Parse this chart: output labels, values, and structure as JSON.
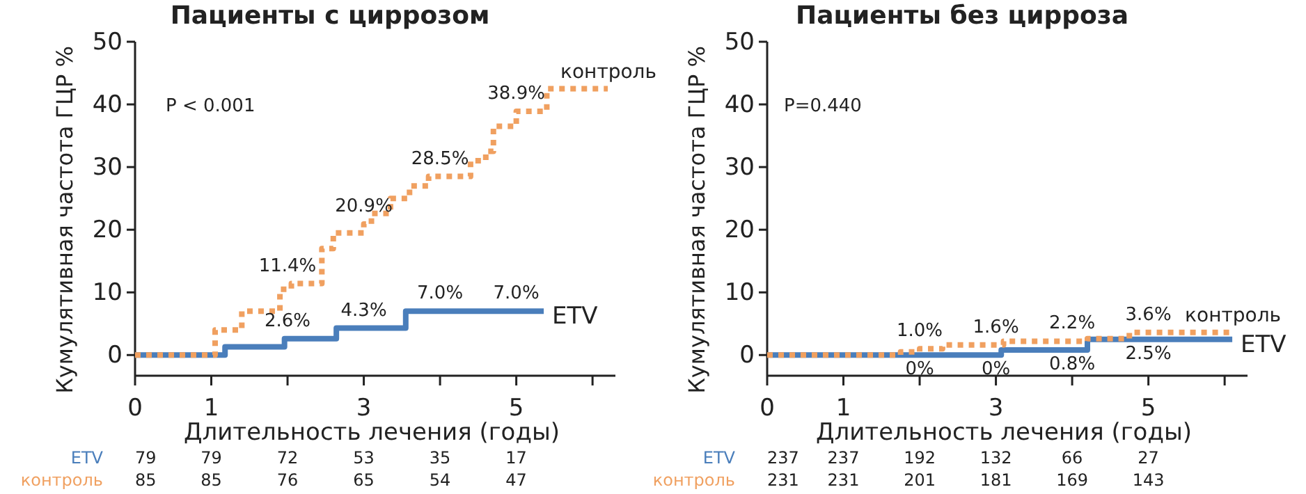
{
  "chart_data": [
    {
      "type": "step",
      "title": "Пациенты с циррозом",
      "xlabel": "Длительность лечения (годы)",
      "ylabel": "Кумулятивная частота ГЦР %",
      "xlim": [
        0,
        6.3
      ],
      "xticks": [
        0,
        1,
        {
          "value": 2,
          "label": null
        },
        3,
        {
          "value": 4,
          "label": null
        },
        5,
        {
          "value": 6,
          "label": null
        }
      ],
      "ylim": [
        -3.3,
        50
      ],
      "yticks": [
        0,
        10,
        20,
        30,
        40,
        50
      ],
      "series": [
        {
          "name": "ETV",
          "color": "#4a7ebb",
          "line_style": "solid",
          "x": [
            0,
            1.18,
            1.96,
            2.64,
            3.55,
            5.36
          ],
          "values": [
            0,
            1.3,
            2.6,
            4.3,
            7.0,
            7.0
          ]
        },
        {
          "name": "контроль",
          "color": "#f0a060",
          "line_style": "dotted",
          "x": [
            0,
            1.05,
            1.4,
            1.9,
            2.05,
            2.45,
            2.6,
            3.0,
            3.1,
            3.35,
            3.6,
            3.85,
            4.4,
            4.6,
            4.7,
            5.0,
            5.4,
            6.2
          ],
          "values": [
            0,
            4.0,
            7.0,
            10.5,
            11.4,
            17,
            19.5,
            20.9,
            22.6,
            25,
            27,
            28.5,
            31,
            32.5,
            36.5,
            38.9,
            42.5,
            42.5
          ]
        }
      ],
      "annotations": [
        "P < 0.001",
        "79 79 72 53 35 17",
        "85 85 76 65 54 47",
        {
          "text": "2.6%",
          "x": 2,
          "y": 2.6
        },
        {
          "text": "4.3%",
          "x": 3,
          "y": 4.3
        },
        {
          "text": "7.0%",
          "x": 4,
          "y": 7.0
        },
        {
          "text": "7.0%",
          "x": 5,
          "y": 7.0
        },
        {
          "text": "11.4%",
          "x": 2,
          "y": 11.4
        },
        {
          "text": "20.9%",
          "x": 3,
          "y": 20.9
        },
        {
          "text": "28.5%",
          "x": 4,
          "y": 28.5
        },
        {
          "text": "38.9%",
          "x": 5,
          "y": 38.9
        }
      ]
    },
    {
      "type": "step",
      "title": "Пациенты без цирроза",
      "xlabel": "Длительность лечения (годы)",
      "ylabel": "Кумулятивная частота ГЦР %",
      "xlim": [
        0,
        6.3
      ],
      "xticks": [
        0,
        1,
        {
          "value": 2,
          "label": null
        },
        3,
        {
          "value": 4,
          "label": null
        },
        5,
        {
          "value": 6,
          "label": null
        }
      ],
      "ylim": [
        -3.3,
        50
      ],
      "yticks": [
        0,
        10,
        20,
        30,
        40,
        50
      ],
      "series": [
        {
          "name": "ETV",
          "color": "#4a7ebb",
          "line_style": "solid",
          "x": [
            0,
            3.07,
            4.2,
            6.1
          ],
          "values": [
            0,
            0.8,
            2.5,
            2.5
          ]
        },
        {
          "name": "контроль",
          "color": "#f0a060",
          "line_style": "dotted",
          "x": [
            0,
            1.75,
            2.0,
            2.3,
            3.1,
            4.2,
            4.75,
            6.1
          ],
          "values": [
            0,
            0.5,
            1.0,
            1.6,
            2.2,
            2.6,
            3.6,
            3.6
          ]
        }
      ],
      "annotations": [
        "P=0.440",
        "237 237 192 132 66 27",
        "231 231 201 181 169 143",
        {
          "text": "0%",
          "x": 2,
          "y": 0
        },
        {
          "text": "0%",
          "x": 3,
          "y": 0
        },
        {
          "text": "0.8%",
          "x": 4,
          "y": 0.8
        },
        {
          "text": "2.5%",
          "x": 5,
          "y": 2.5
        },
        {
          "text": "1.0%",
          "x": 2,
          "y": 1.0
        },
        {
          "text": "1.6%",
          "x": 3,
          "y": 1.6
        },
        {
          "text": "2.2%",
          "x": 4,
          "y": 2.2
        },
        {
          "text": "3.6%",
          "x": 5,
          "y": 3.6
        }
      ]
    }
  ]
}
